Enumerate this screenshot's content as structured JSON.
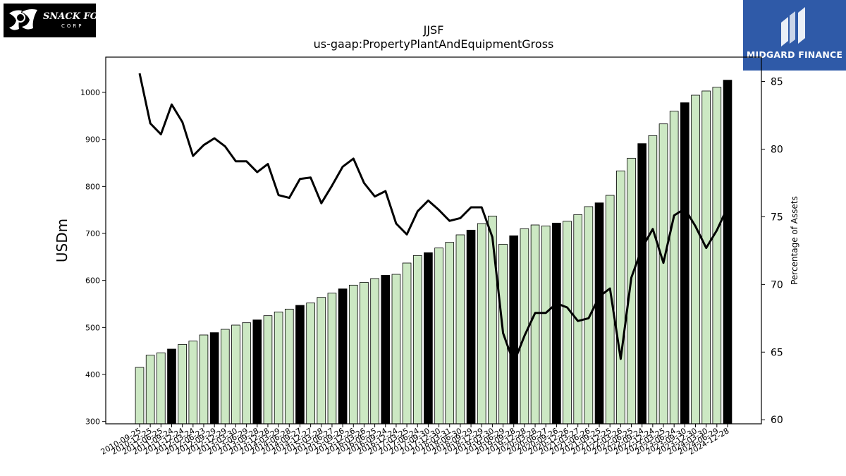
{
  "logos": {
    "left": {
      "text": "J&J SNACK FOODS"
    },
    "right": {
      "text": "MIDGARD FINANCE"
    }
  },
  "chart_data": {
    "type": "bar",
    "title": "JJSF",
    "subtitle": "us-gaap:PropertyPlantAndEquipmentGross",
    "ylabel": "USDm",
    "y2label": "Percentage of Assets",
    "ylim": [
      295,
      1075
    ],
    "y2lim": [
      59.7,
      86.8
    ],
    "yticks": [
      300,
      400,
      500,
      600,
      700,
      800,
      900,
      1000
    ],
    "y2ticks": [
      60,
      65,
      70,
      75,
      80,
      85
    ],
    "colors": {
      "bar": "#cce8c3",
      "highlight": "#000000",
      "line": "#000000"
    },
    "categories": [
      "2010-09-25",
      "2010-12-25",
      "2011-06-25",
      "2011-09-24",
      "2011-12-24",
      "2012-03-24",
      "2012-06-23",
      "2012-09-29",
      "2012-12-29",
      "2013-03-30",
      "2013-06-29",
      "2013-09-28",
      "2013-12-28",
      "2014-03-29",
      "2014-06-28",
      "2014-09-27",
      "2014-12-27",
      "2015-03-28",
      "2015-06-27",
      "2015-09-26",
      "2015-12-26",
      "2016-03-26",
      "2016-06-25",
      "2016-09-24",
      "2016-12-24",
      "2017-03-25",
      "2017-06-24",
      "2017-09-30",
      "2017-12-30",
      "2018-03-31",
      "2018-06-30",
      "2018-09-29",
      "2018-12-29",
      "2019-03-30",
      "2019-06-29",
      "2019-09-28",
      "2019-12-28",
      "2020-03-28",
      "2020-06-27",
      "2020-09-26",
      "2020-12-26",
      "2021-03-27",
      "2021-06-26",
      "2021-09-25",
      "2021-12-25",
      "2022-03-26",
      "2022-06-25",
      "2022-09-24",
      "2022-12-24",
      "2023-03-25",
      "2023-06-24",
      "2023-09-30",
      "2023-12-30",
      "2024-03-30",
      "2024-06-29",
      "2024-12-28"
    ],
    "series": [
      {
        "type": "bar",
        "values": [
          415,
          441,
          446,
          454,
          464,
          471,
          484,
          489,
          496,
          505,
          510,
          516,
          525,
          533,
          539,
          547,
          552,
          564,
          573,
          582,
          590,
          596,
          604,
          611,
          613,
          637,
          653,
          659,
          669,
          681,
          697,
          707,
          721,
          737,
          677,
          695,
          710,
          718,
          716,
          722,
          726,
          740,
          757,
          765,
          781,
          833,
          860,
          891,
          908,
          933,
          960,
          978,
          994,
          1003,
          1011,
          1026
        ],
        "highlight": [
          false,
          false,
          false,
          true,
          false,
          false,
          false,
          true,
          false,
          false,
          false,
          true,
          false,
          false,
          false,
          true,
          false,
          false,
          false,
          true,
          false,
          false,
          false,
          true,
          false,
          false,
          false,
          true,
          false,
          false,
          false,
          true,
          false,
          false,
          false,
          true,
          false,
          false,
          false,
          true,
          false,
          false,
          false,
          true,
          false,
          false,
          false,
          true,
          false,
          false,
          false,
          true,
          false,
          false,
          false,
          true
        ]
      },
      {
        "type": "line",
        "axis": "right",
        "values": [
          85.6,
          81.9,
          81.1,
          83.3,
          82.0,
          79.5,
          80.3,
          80.8,
          80.2,
          79.1,
          79.1,
          78.3,
          78.9,
          76.6,
          76.4,
          77.8,
          77.9,
          76.0,
          77.3,
          78.7,
          79.3,
          77.5,
          76.5,
          76.9,
          74.5,
          73.7,
          75.4,
          76.2,
          75.5,
          74.7,
          74.9,
          75.7,
          75.7,
          73.5,
          66.4,
          64.2,
          66.2,
          67.9,
          67.9,
          68.6,
          68.3,
          67.3,
          67.5,
          69.1,
          69.7,
          64.5,
          70.5,
          72.7,
          74.1,
          71.6,
          75.1,
          75.6,
          74.3,
          72.7,
          74.0,
          75.7
        ]
      }
    ]
  }
}
